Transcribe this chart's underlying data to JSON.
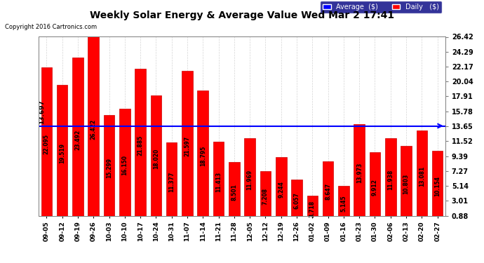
{
  "title": "Weekly Solar Energy & Average Value Wed Mar 2 17:41",
  "copyright": "Copyright 2016 Cartronics.com",
  "categories": [
    "09-05",
    "09-12",
    "09-19",
    "09-26",
    "10-03",
    "10-10",
    "10-17",
    "10-24",
    "10-31",
    "11-07",
    "11-14",
    "11-21",
    "11-28",
    "12-05",
    "12-12",
    "12-19",
    "12-26",
    "01-02",
    "01-09",
    "01-16",
    "01-23",
    "01-30",
    "02-06",
    "02-13",
    "02-20",
    "02-27"
  ],
  "values": [
    22.095,
    19.519,
    23.492,
    26.422,
    15.299,
    16.15,
    21.885,
    18.02,
    11.377,
    21.597,
    18.795,
    11.413,
    8.501,
    11.969,
    7.208,
    9.244,
    6.057,
    3.718,
    8.647,
    5.145,
    13.973,
    9.912,
    11.938,
    10.803,
    13.081,
    10.154
  ],
  "average_value": 13.697,
  "ylim_min": 0.88,
  "ylim_max": 26.42,
  "yticks": [
    0.88,
    3.01,
    5.14,
    7.27,
    9.39,
    11.52,
    13.65,
    15.78,
    17.91,
    20.04,
    22.17,
    24.29,
    26.42
  ],
  "bar_color": "#FF0000",
  "bar_edge_color": "#CC0000",
  "avg_line_color": "#0000FF",
  "background_color": "#FFFFFF",
  "plot_bg_color": "#FFFFFF",
  "grid_color": "#AAAAAA",
  "title_fontsize": 13,
  "legend_avg_color": "#0000FF",
  "legend_daily_color": "#FF0000",
  "arrow_color": "#000080"
}
